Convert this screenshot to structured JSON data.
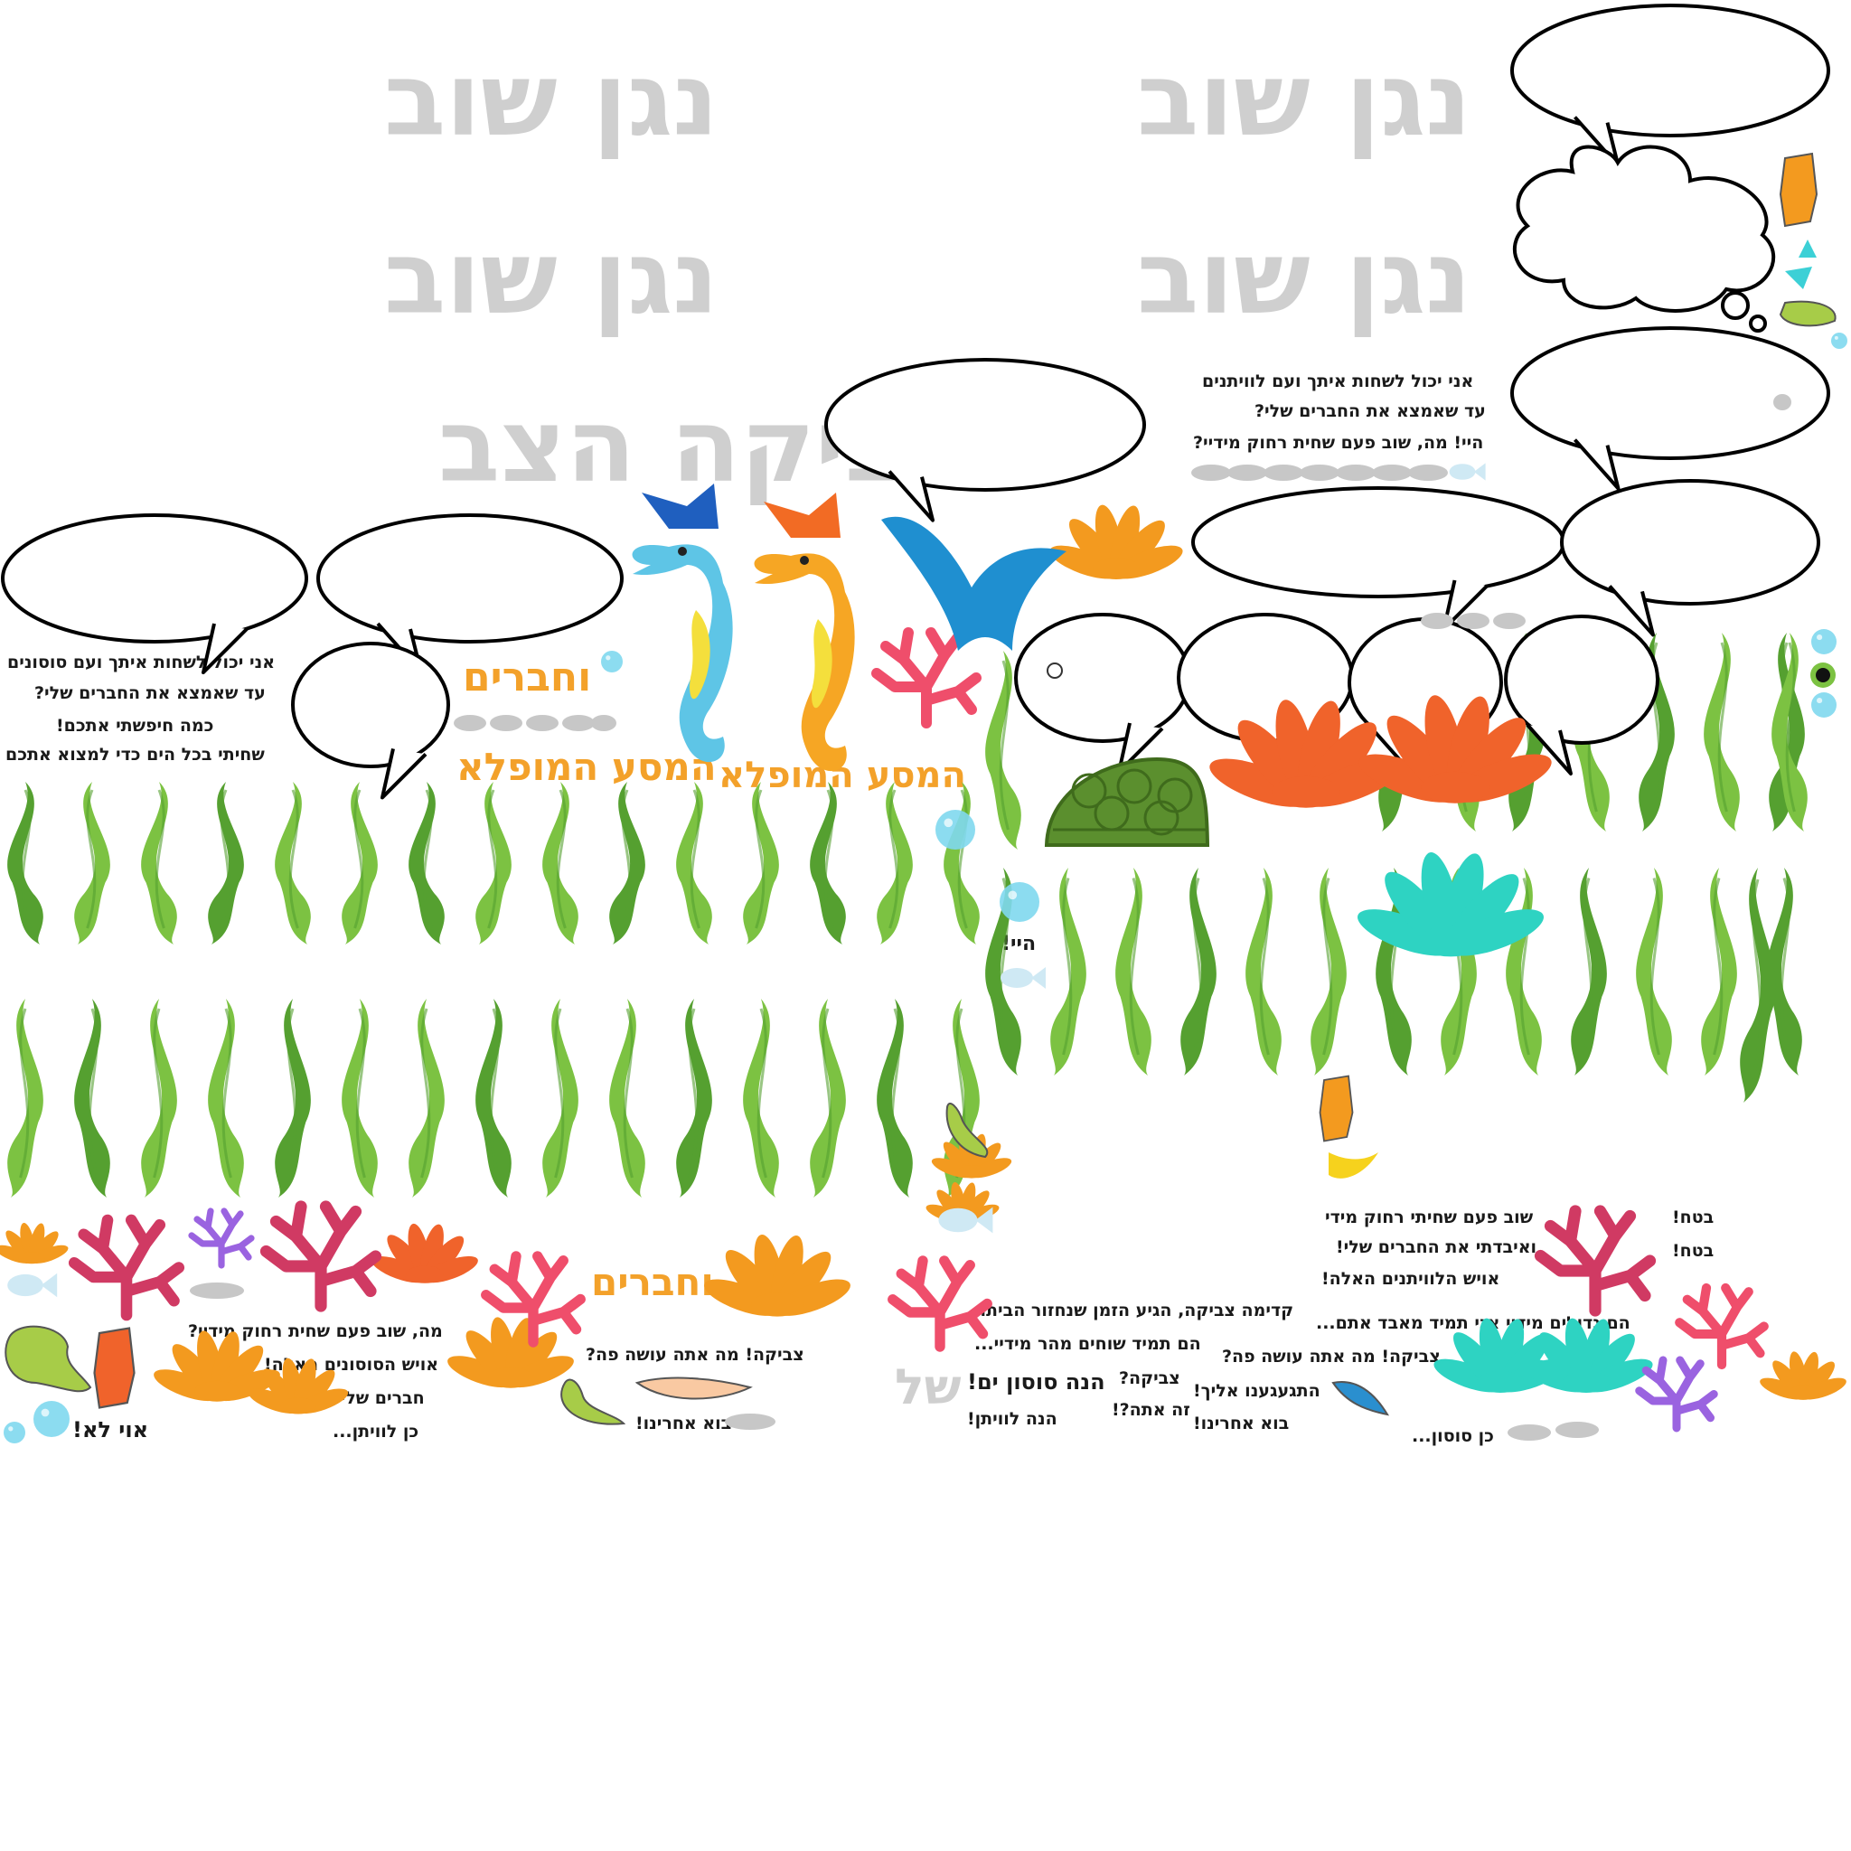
{
  "sheet": {
    "play_again": [
      "נגן שוב",
      "נגן שוב",
      "נגן שוב",
      "נגן שוב"
    ],
    "turtle_name": "צביקה הצב",
    "journey_title": "המסע המופלא",
    "friends_title": "וחברים",
    "of_word": "של"
  },
  "captions": {
    "whale_lines": [
      "אני יכול לשחות איתך ועם לוויתנים",
      "עד שאמצא את החברים שלי?",
      "היי! מה, שוב פעם שחית רחוק מידיי?"
    ],
    "seahorse_lines": [
      "אני יכול לשחות איתך ועם סוסונים",
      "עד שאמצא את החברים שלי?",
      "כמה חיפשתי אתכם!",
      "שחיתי בכל הים כדי למצוא אתכם"
    ],
    "hey": "היי!",
    "bottom_left": [
      "מה, שוב פעם שחית רחוק מידיי?",
      "אויש הסוסונים האלה!",
      "חברים שלי!",
      "כן לוויתן..."
    ],
    "oh_no": "אוי לא!",
    "tzvika_what": "צביקה! מה אתה עושה פה?",
    "come_after": "בוא אחרינו!",
    "home_lines": [
      "קדימה צביקה, הגיע הזמן שנחזור הביתה",
      "הם תמיד שוחים מהר מידיי..."
    ],
    "seahorse_here": "הנה סוסון ים!",
    "whale_here": "הנה לוויתן!",
    "tzvika_q": "צביקה?",
    "is_it_you": "זה אתה?!",
    "missed_you": "התגעגענו אליך!",
    "come_after2": "בוא אחרינו!",
    "tzvika_what2": "צביקה! מה אתה עושה פה?",
    "lost_lines": [
      "שוב פעם שחיתי רחוק מידי",
      "ואיבדתי את החברים שלי!",
      "אויש הלוויתנים האלה!"
    ],
    "big_lines": "הם גדולים מידיי אני תמיד מאבד אתם...",
    "sure1": "בטח!",
    "sure2": "בטח!",
    "yes_seahorse": "כן סוסון..."
  },
  "colors": {
    "seaweed_light": "#7cc242",
    "seaweed_dark": "#55a030",
    "coral_orange": "#f39a1f",
    "coral_red_orange": "#f0632b",
    "coral_magenta": "#d03a63",
    "coral_pink": "#ef4e6b",
    "coral_teal": "#2ed3c2",
    "coral_purple": "#9a63e0",
    "bubble": "#7fd8ee",
    "turtle_shell": "#5b8f2e",
    "gray_text": "#cfcfcf",
    "orange_text": "#f3a12a"
  },
  "sprites": [
    "seahorse-blue",
    "seahorse-orange",
    "whale-tail",
    "turtle-shell",
    "speech-bubble",
    "thought-cloud",
    "seaweed",
    "coral",
    "bubble",
    "stone",
    "small-fish",
    "sea-bottle",
    "fish-tail",
    "turtle-flipper",
    "eye"
  ]
}
